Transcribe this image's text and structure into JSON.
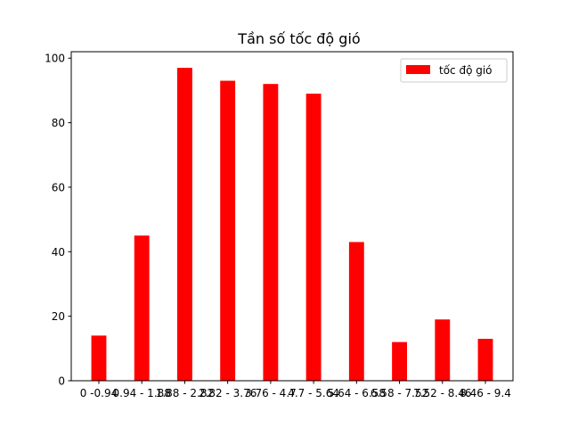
{
  "chart_data": {
    "type": "bar",
    "title": "Tần số tốc độ gió",
    "xlabel": "",
    "ylabel": "",
    "categories": [
      "0 -0.94",
      "0.94 - 1.88",
      "1.88 - 2.82",
      "2.82 - 3.76",
      "3.76 - 4.7",
      "4.7 - 5.64",
      "5.64 - 6.58",
      "6.58 - 7.52",
      "7.52 - 8.46",
      "8.46 - 9.4"
    ],
    "series": [
      {
        "name": "tốc độ gió",
        "values": [
          14,
          45,
          97,
          93,
          92,
          89,
          43,
          12,
          19,
          13
        ],
        "color": "#ff0000"
      }
    ],
    "ylim": [
      0,
      102
    ],
    "yticks": [
      0,
      20,
      40,
      60,
      80,
      100
    ],
    "grid": false,
    "legend_position": "top-right"
  }
}
